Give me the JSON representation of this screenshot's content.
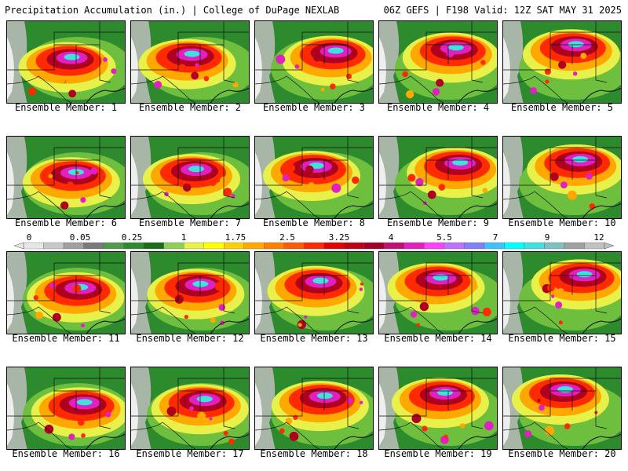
{
  "header": {
    "title": "Precipitation Accumulation (in.) | College of DuPage NEXLAB",
    "run_info": "06Z GEFS | F198 Valid: 12Z SAT MAY 31 2025"
  },
  "colorbar": {
    "labels": [
      "0",
      "0.05",
      "0.25",
      "1",
      "1.75",
      "2.5",
      "3.25",
      "4",
      "5.5",
      "7",
      "9",
      "12"
    ],
    "colors": [
      "#e6e6e6",
      "#c8c8c8",
      "#a0a0a0",
      "#7a7a7a",
      "#4f9a4f",
      "#2e8b2e",
      "#1a6e1a",
      "#8fd05a",
      "#e8f04a",
      "#ffff00",
      "#ffd000",
      "#ffa800",
      "#ff8000",
      "#ff5a00",
      "#ff2a00",
      "#e60000",
      "#c00010",
      "#a00028",
      "#c01078",
      "#e020c0",
      "#ff40ff",
      "#c070ff",
      "#8080ff",
      "#40c0ff",
      "#00ffff",
      "#40e0e0",
      "#80c0c0",
      "#a0a0a0",
      "#c0c0c0"
    ]
  },
  "members": [
    {
      "label": "Ensemble Member: 1"
    },
    {
      "label": "Ensemble Member: 2"
    },
    {
      "label": "Ensemble Member: 3"
    },
    {
      "label": "Ensemble Member: 4"
    },
    {
      "label": "Ensemble Member: 5"
    },
    {
      "label": "Ensemble Member: 6"
    },
    {
      "label": "Ensemble Member: 7"
    },
    {
      "label": "Ensemble Member: 8"
    },
    {
      "label": "Ensemble Member: 9"
    },
    {
      "label": "Ensemble Member: 10"
    },
    {
      "label": "Ensemble Member: 11"
    },
    {
      "label": "Ensemble Member: 12"
    },
    {
      "label": "Ensemble Member: 13"
    },
    {
      "label": "Ensemble Member: 14"
    },
    {
      "label": "Ensemble Member: 15"
    },
    {
      "label": "Ensemble Member: 16"
    },
    {
      "label": "Ensemble Member: 17"
    },
    {
      "label": "Ensemble Member: 18"
    },
    {
      "label": "Ensemble Member: 19"
    },
    {
      "label": "Ensemble Member: 20"
    }
  ]
}
